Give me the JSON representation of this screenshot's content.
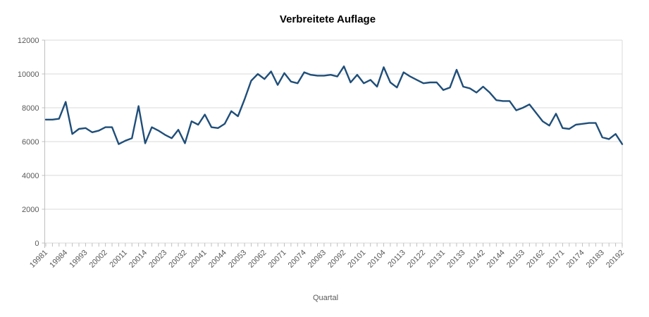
{
  "title": "Verbreitete Auflage",
  "chart_data": {
    "type": "line",
    "title": "Verbreitete Auflage",
    "xlabel": "Quartal",
    "ylabel": "",
    "ylim": [
      0,
      12000
    ],
    "y_ticks": [
      0,
      2000,
      4000,
      6000,
      8000,
      10000,
      12000
    ],
    "grid": true,
    "legend": "none",
    "label_every": 3,
    "x_tick_labels": [
      "19981",
      "19984",
      "19993",
      "20002",
      "20011",
      "20014",
      "20023",
      "20032",
      "20041",
      "20044",
      "20053",
      "20062",
      "20071",
      "20074",
      "20083",
      "20092",
      "20101",
      "20104",
      "20113",
      "20122",
      "20131",
      "20133",
      "20142",
      "20144",
      "20153",
      "20162",
      "20171",
      "20174",
      "20183",
      "20192"
    ],
    "series": [
      {
        "name": "Verbreitete Auflage",
        "color": "#1F4E79",
        "values": [
          7300,
          7300,
          7350,
          8350,
          6450,
          6750,
          6800,
          6550,
          6650,
          6850,
          6850,
          5850,
          6050,
          6200,
          8100,
          5900,
          6850,
          6650,
          6400,
          6200,
          6700,
          5900,
          7200,
          7000,
          7600,
          6850,
          6800,
          7050,
          7800,
          7500,
          8500,
          9600,
          10000,
          9700,
          10150,
          9350,
          10050,
          9550,
          9450,
          10100,
          9950,
          9900,
          9900,
          9950,
          9850,
          10450,
          9500,
          9950,
          9450,
          9650,
          9250,
          10400,
          9500,
          9200,
          10100,
          9850,
          9650,
          9450,
          9500,
          9500,
          9050,
          9200,
          10250,
          9250,
          9150,
          8900,
          9250,
          8900,
          8450,
          8400,
          8400,
          7850,
          8000,
          8200,
          7700,
          7200,
          6950,
          7650,
          6800,
          6750,
          7000,
          7050,
          7100,
          7100,
          6250,
          6150,
          6450,
          5850
        ]
      }
    ]
  },
  "colors": {
    "line": "#1F4E79",
    "grid": "#D9D9D9",
    "axis": "#BFBFBF",
    "tick_label": "#595959",
    "title": "#000000",
    "background": "#FFFFFF"
  }
}
